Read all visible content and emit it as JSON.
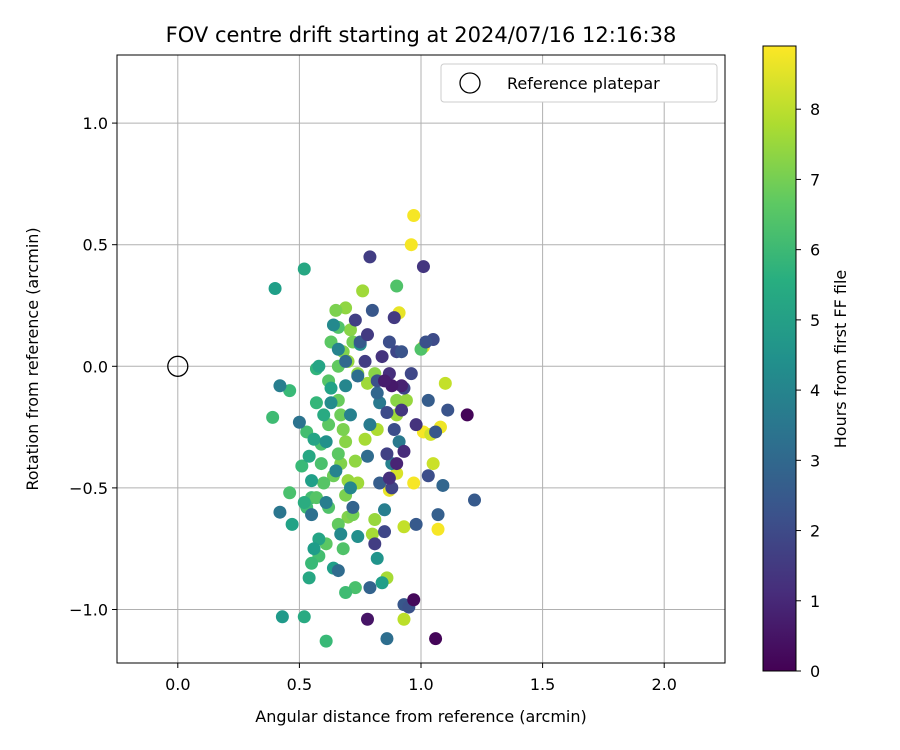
{
  "chart_data": {
    "type": "scatter",
    "title": "FOV centre drift starting at 2024/07/16 12:16:38",
    "xlabel": "Angular distance from reference (arcmin)",
    "ylabel": "Rotation from reference (arcmin)",
    "xlim": [
      -0.25,
      2.25
    ],
    "ylim": [
      -1.22,
      1.28
    ],
    "xticks": [
      0.0,
      0.5,
      1.0,
      1.5,
      2.0
    ],
    "xtick_labels": [
      "0.0",
      "0.5",
      "1.0",
      "1.5",
      "2.0"
    ],
    "yticks": [
      -1.0,
      -0.5,
      0.0,
      0.5,
      1.0
    ],
    "ytick_labels": [
      "−1.0",
      "−0.5",
      "0.0",
      "0.5",
      "1.0"
    ],
    "grid": true,
    "legend": {
      "placement": "top-right",
      "entries": [
        {
          "label": "Reference platepar",
          "marker": "open-circle"
        }
      ]
    },
    "reference_point": {
      "x": 0.0,
      "y": 0.0
    },
    "colorbar": {
      "label": "Hours from first FF file",
      "colormap": "viridis",
      "range": [
        0,
        8.9
      ],
      "ticks": [
        0,
        1,
        2,
        3,
        4,
        5,
        6,
        7,
        8
      ],
      "tick_labels": [
        "0",
        "1",
        "2",
        "3",
        "4",
        "5",
        "6",
        "7",
        "8"
      ]
    },
    "points": [
      {
        "x": 0.97,
        "y": 0.62,
        "h": 8.8
      },
      {
        "x": 0.96,
        "y": 0.5,
        "h": 8.8
      },
      {
        "x": 0.91,
        "y": 0.22,
        "h": 8.6
      },
      {
        "x": 1.01,
        "y": 0.08,
        "h": 8.7
      },
      {
        "x": 1.1,
        "y": -0.07,
        "h": 8.1
      },
      {
        "x": 1.08,
        "y": -0.25,
        "h": 8.7
      },
      {
        "x": 1.01,
        "y": -0.27,
        "h": 8.8
      },
      {
        "x": 1.04,
        "y": -0.28,
        "h": 8.3
      },
      {
        "x": 1.05,
        "y": -0.4,
        "h": 8.2
      },
      {
        "x": 0.9,
        "y": -0.44,
        "h": 8.4
      },
      {
        "x": 0.97,
        "y": -0.48,
        "h": 8.8
      },
      {
        "x": 0.87,
        "y": -0.51,
        "h": 8.6
      },
      {
        "x": 1.07,
        "y": -0.67,
        "h": 8.8
      },
      {
        "x": 0.93,
        "y": -0.66,
        "h": 8.1
      },
      {
        "x": 0.93,
        "y": -1.04,
        "h": 8.0
      },
      {
        "x": 0.86,
        "y": -0.87,
        "h": 7.7
      },
      {
        "x": 0.76,
        "y": 0.31,
        "h": 7.6
      },
      {
        "x": 0.69,
        "y": 0.24,
        "h": 7.4
      },
      {
        "x": 0.65,
        "y": 0.23,
        "h": 7.1
      },
      {
        "x": 0.71,
        "y": 0.15,
        "h": 7.3
      },
      {
        "x": 0.72,
        "y": 0.1,
        "h": 7.0
      },
      {
        "x": 0.68,
        "y": 0.06,
        "h": 7.2
      },
      {
        "x": 0.7,
        "y": 0.02,
        "h": 7.5
      },
      {
        "x": 0.74,
        "y": -0.03,
        "h": 7.4
      },
      {
        "x": 0.78,
        "y": -0.07,
        "h": 7.6
      },
      {
        "x": 0.81,
        "y": -0.03,
        "h": 7.3
      },
      {
        "x": 0.9,
        "y": -0.14,
        "h": 7.3
      },
      {
        "x": 0.94,
        "y": -0.14,
        "h": 7.5
      },
      {
        "x": 0.9,
        "y": -0.2,
        "h": 7.6
      },
      {
        "x": 0.82,
        "y": -0.26,
        "h": 7.8
      },
      {
        "x": 0.77,
        "y": -0.3,
        "h": 7.7
      },
      {
        "x": 0.69,
        "y": -0.31,
        "h": 7.3
      },
      {
        "x": 0.68,
        "y": -0.26,
        "h": 7.1
      },
      {
        "x": 0.73,
        "y": -0.39,
        "h": 7.4
      },
      {
        "x": 0.67,
        "y": -0.4,
        "h": 7.2
      },
      {
        "x": 0.7,
        "y": -0.47,
        "h": 7.5
      },
      {
        "x": 0.74,
        "y": -0.48,
        "h": 7.6
      },
      {
        "x": 0.69,
        "y": -0.53,
        "h": 7.1
      },
      {
        "x": 0.7,
        "y": -0.62,
        "h": 7.2
      },
      {
        "x": 0.72,
        "y": -0.61,
        "h": 7.0
      },
      {
        "x": 0.81,
        "y": -0.63,
        "h": 7.5
      },
      {
        "x": 0.8,
        "y": -0.69,
        "h": 7.7
      },
      {
        "x": 0.66,
        "y": 0.16,
        "h": 6.4
      },
      {
        "x": 0.63,
        "y": 0.1,
        "h": 6.6
      },
      {
        "x": 0.66,
        "y": 0.0,
        "h": 6.7
      },
      {
        "x": 0.62,
        "y": -0.06,
        "h": 6.5
      },
      {
        "x": 0.66,
        "y": -0.14,
        "h": 6.8
      },
      {
        "x": 0.67,
        "y": -0.2,
        "h": 6.9
      },
      {
        "x": 0.62,
        "y": -0.24,
        "h": 6.6
      },
      {
        "x": 0.59,
        "y": -0.32,
        "h": 6.3
      },
      {
        "x": 0.66,
        "y": -0.36,
        "h": 6.6
      },
      {
        "x": 0.64,
        "y": -0.45,
        "h": 6.9
      },
      {
        "x": 0.6,
        "y": -0.48,
        "h": 6.5
      },
      {
        "x": 0.55,
        "y": -0.54,
        "h": 6.2
      },
      {
        "x": 0.62,
        "y": -0.58,
        "h": 6.4
      },
      {
        "x": 0.66,
        "y": -0.65,
        "h": 6.7
      },
      {
        "x": 0.61,
        "y": -0.73,
        "h": 6.6
      },
      {
        "x": 0.68,
        "y": -0.75,
        "h": 6.4
      },
      {
        "x": 0.58,
        "y": -0.78,
        "h": 6.2
      },
      {
        "x": 0.55,
        "y": -0.81,
        "h": 6.0
      },
      {
        "x": 0.73,
        "y": -0.91,
        "h": 6.3
      },
      {
        "x": 0.69,
        "y": -0.93,
        "h": 6.1
      },
      {
        "x": 0.61,
        "y": -1.13,
        "h": 6.0
      },
      {
        "x": 0.39,
        "y": -0.21,
        "h": 6.1
      },
      {
        "x": 0.46,
        "y": -0.1,
        "h": 6.0
      },
      {
        "x": 0.57,
        "y": -0.15,
        "h": 5.9
      },
      {
        "x": 0.57,
        "y": -0.01,
        "h": 5.8
      },
      {
        "x": 0.9,
        "y": 0.33,
        "h": 6.4
      },
      {
        "x": 1.0,
        "y": 0.07,
        "h": 6.4
      },
      {
        "x": 0.53,
        "y": -0.27,
        "h": 6.2
      },
      {
        "x": 0.59,
        "y": -0.4,
        "h": 6.3
      },
      {
        "x": 0.51,
        "y": -0.41,
        "h": 6.0
      },
      {
        "x": 0.46,
        "y": -0.52,
        "h": 6.3
      },
      {
        "x": 0.53,
        "y": -0.58,
        "h": 6.1
      },
      {
        "x": 0.57,
        "y": -0.54,
        "h": 6.5
      },
      {
        "x": 0.52,
        "y": 0.4,
        "h": 5.3
      },
      {
        "x": 0.4,
        "y": 0.32,
        "h": 5.0
      },
      {
        "x": 0.58,
        "y": 0.0,
        "h": 5.2
      },
      {
        "x": 0.63,
        "y": -0.09,
        "h": 5.1
      },
      {
        "x": 0.6,
        "y": -0.2,
        "h": 5.4
      },
      {
        "x": 0.56,
        "y": -0.3,
        "h": 5.2
      },
      {
        "x": 0.54,
        "y": -0.37,
        "h": 5.3
      },
      {
        "x": 0.55,
        "y": -0.47,
        "h": 5.0
      },
      {
        "x": 0.52,
        "y": -0.56,
        "h": 5.5
      },
      {
        "x": 0.47,
        "y": -0.65,
        "h": 5.1
      },
      {
        "x": 0.58,
        "y": -0.71,
        "h": 5.2
      },
      {
        "x": 0.56,
        "y": -0.75,
        "h": 4.9
      },
      {
        "x": 0.64,
        "y": -0.83,
        "h": 5.0
      },
      {
        "x": 0.54,
        "y": -0.87,
        "h": 5.3
      },
      {
        "x": 0.52,
        "y": -1.03,
        "h": 5.4
      },
      {
        "x": 0.43,
        "y": -1.03,
        "h": 4.8
      },
      {
        "x": 0.82,
        "y": -0.79,
        "h": 4.6
      },
      {
        "x": 0.84,
        "y": -0.89,
        "h": 5.0
      },
      {
        "x": 0.64,
        "y": 0.17,
        "h": 4.2
      },
      {
        "x": 0.66,
        "y": 0.07,
        "h": 4.0
      },
      {
        "x": 0.75,
        "y": 0.09,
        "h": 4.4
      },
      {
        "x": 0.69,
        "y": -0.08,
        "h": 4.1
      },
      {
        "x": 0.63,
        "y": -0.15,
        "h": 4.3
      },
      {
        "x": 0.71,
        "y": -0.2,
        "h": 3.9
      },
      {
        "x": 0.61,
        "y": -0.31,
        "h": 4.5
      },
      {
        "x": 0.65,
        "y": -0.43,
        "h": 4.0
      },
      {
        "x": 0.71,
        "y": -0.5,
        "h": 4.1
      },
      {
        "x": 0.61,
        "y": -0.56,
        "h": 3.8
      },
      {
        "x": 0.67,
        "y": -0.69,
        "h": 4.2
      },
      {
        "x": 0.74,
        "y": -0.7,
        "h": 4.4
      },
      {
        "x": 0.85,
        "y": -0.59,
        "h": 3.8
      },
      {
        "x": 0.88,
        "y": -0.4,
        "h": 3.9
      },
      {
        "x": 0.91,
        "y": -0.31,
        "h": 3.6
      },
      {
        "x": 0.79,
        "y": -0.24,
        "h": 3.7
      },
      {
        "x": 0.83,
        "y": -0.15,
        "h": 3.6
      },
      {
        "x": 0.42,
        "y": -0.08,
        "h": 3.8
      },
      {
        "x": 0.5,
        "y": -0.23,
        "h": 3.4
      },
      {
        "x": 0.42,
        "y": -0.6,
        "h": 3.5
      },
      {
        "x": 0.55,
        "y": -0.61,
        "h": 3.3
      },
      {
        "x": 0.86,
        "y": -1.12,
        "h": 3.2
      },
      {
        "x": 0.66,
        "y": -0.84,
        "h": 3.1
      },
      {
        "x": 0.79,
        "y": -0.91,
        "h": 2.8
      },
      {
        "x": 0.69,
        "y": 0.02,
        "h": 3.0
      },
      {
        "x": 0.74,
        "y": -0.04,
        "h": 3.2
      },
      {
        "x": 0.82,
        "y": -0.11,
        "h": 2.9
      },
      {
        "x": 0.78,
        "y": -0.37,
        "h": 3.1
      },
      {
        "x": 0.72,
        "y": -0.58,
        "h": 2.8
      },
      {
        "x": 0.83,
        "y": -0.48,
        "h": 2.6
      },
      {
        "x": 0.93,
        "y": -0.98,
        "h": 2.4
      },
      {
        "x": 0.95,
        "y": -0.99,
        "h": 2.2
      },
      {
        "x": 0.98,
        "y": -0.65,
        "h": 2.5
      },
      {
        "x": 1.07,
        "y": -0.61,
        "h": 2.7
      },
      {
        "x": 1.09,
        "y": -0.49,
        "h": 2.9
      },
      {
        "x": 1.22,
        "y": -0.55,
        "h": 2.5
      },
      {
        "x": 1.11,
        "y": -0.18,
        "h": 2.3
      },
      {
        "x": 1.03,
        "y": -0.14,
        "h": 2.6
      },
      {
        "x": 1.06,
        "y": -0.27,
        "h": 2.4
      },
      {
        "x": 1.03,
        "y": -0.45,
        "h": 2.1
      },
      {
        "x": 1.05,
        "y": 0.11,
        "h": 2.0
      },
      {
        "x": 1.02,
        "y": 0.1,
        "h": 2.2
      },
      {
        "x": 0.9,
        "y": 0.06,
        "h": 1.9
      },
      {
        "x": 0.87,
        "y": 0.1,
        "h": 2.1
      },
      {
        "x": 0.92,
        "y": 0.06,
        "h": 2.3
      },
      {
        "x": 0.8,
        "y": 0.23,
        "h": 2.4
      },
      {
        "x": 0.75,
        "y": 0.1,
        "h": 2.5
      },
      {
        "x": 0.82,
        "y": -0.06,
        "h": 2.2
      },
      {
        "x": 0.86,
        "y": -0.19,
        "h": 2.0
      },
      {
        "x": 0.93,
        "y": -0.09,
        "h": 1.8
      },
      {
        "x": 0.96,
        "y": -0.03,
        "h": 1.9
      },
      {
        "x": 0.89,
        "y": -0.26,
        "h": 2.1
      },
      {
        "x": 0.86,
        "y": -0.36,
        "h": 1.7
      },
      {
        "x": 0.88,
        "y": -0.5,
        "h": 1.8
      },
      {
        "x": 0.81,
        "y": -0.73,
        "h": 1.6
      },
      {
        "x": 0.85,
        "y": -0.68,
        "h": 1.9
      },
      {
        "x": 0.79,
        "y": 0.45,
        "h": 1.6
      },
      {
        "x": 1.01,
        "y": 0.41,
        "h": 1.4
      },
      {
        "x": 0.89,
        "y": 0.2,
        "h": 1.5
      },
      {
        "x": 0.73,
        "y": 0.19,
        "h": 1.7
      },
      {
        "x": 0.78,
        "y": 0.13,
        "h": 1.5
      },
      {
        "x": 0.84,
        "y": 0.04,
        "h": 1.3
      },
      {
        "x": 0.77,
        "y": 0.02,
        "h": 1.6
      },
      {
        "x": 0.87,
        "y": -0.03,
        "h": 1.2
      },
      {
        "x": 0.92,
        "y": -0.18,
        "h": 1.4
      },
      {
        "x": 0.98,
        "y": -0.24,
        "h": 1.3
      },
      {
        "x": 0.93,
        "y": -0.35,
        "h": 1.1
      },
      {
        "x": 0.87,
        "y": -0.46,
        "h": 1.2
      },
      {
        "x": 0.9,
        "y": -0.4,
        "h": 0.9
      },
      {
        "x": 0.92,
        "y": -0.08,
        "h": 0.8
      },
      {
        "x": 0.88,
        "y": -0.08,
        "h": 0.6
      },
      {
        "x": 0.85,
        "y": -0.06,
        "h": 0.7
      },
      {
        "x": 0.78,
        "y": -1.04,
        "h": 0.5
      },
      {
        "x": 0.97,
        "y": -0.96,
        "h": 0.2
      },
      {
        "x": 1.06,
        "y": -1.12,
        "h": 0.1
      },
      {
        "x": 1.19,
        "y": -0.2,
        "h": 0.1
      }
    ]
  }
}
